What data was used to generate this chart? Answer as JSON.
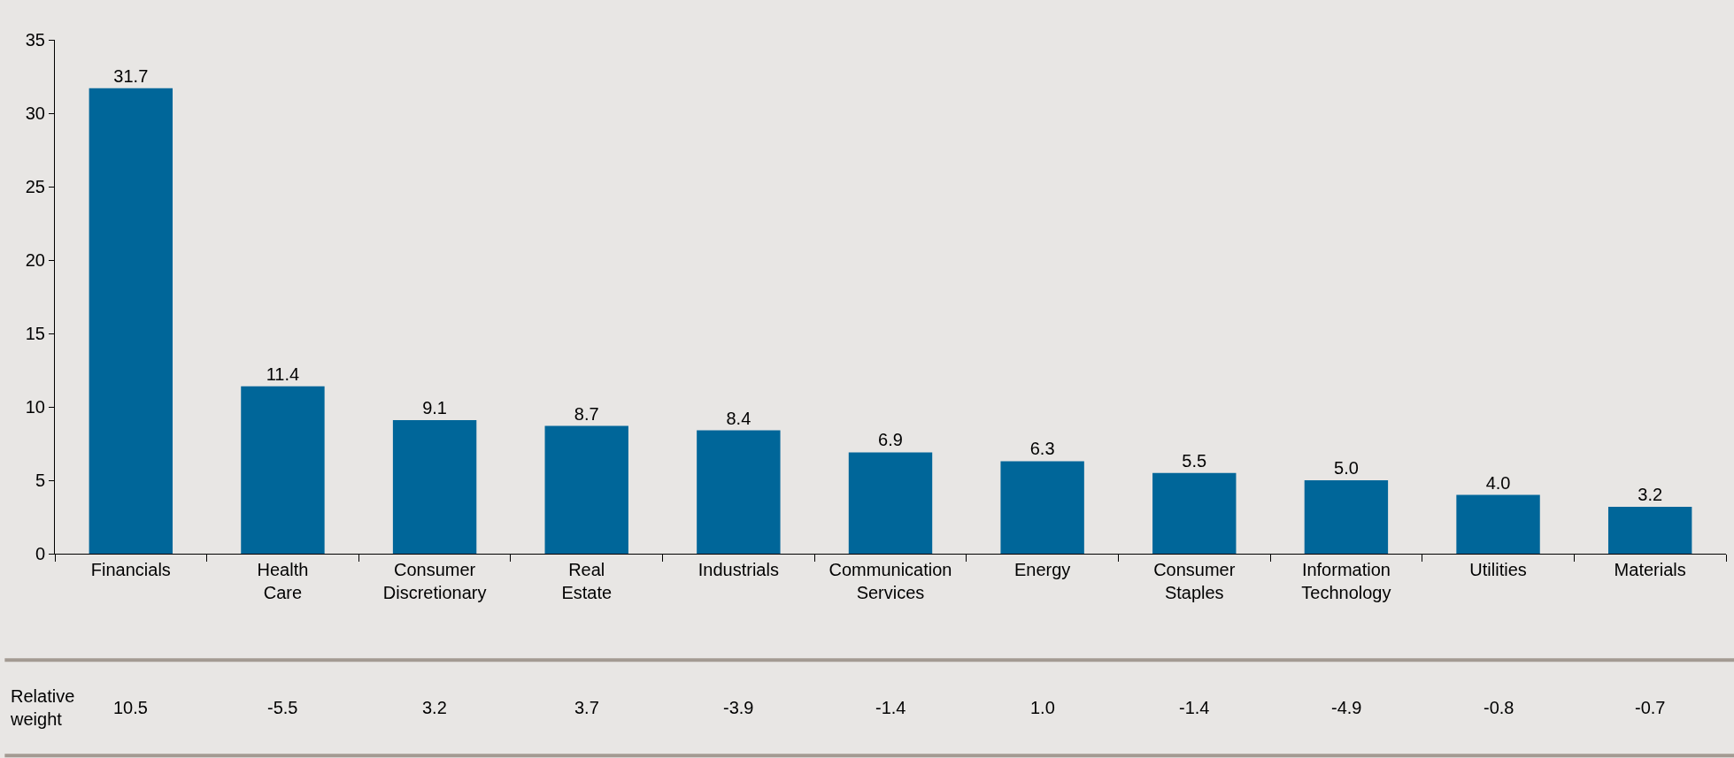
{
  "chart_data": {
    "type": "bar",
    "categories": [
      "Financials",
      "Health Care",
      "Consumer Discretionary",
      "Real Estate",
      "Industrials",
      "Communication Services",
      "Energy",
      "Consumer Staples",
      "Information Technology",
      "Utilities",
      "Materials"
    ],
    "values": [
      31.7,
      11.4,
      9.1,
      8.7,
      8.4,
      6.9,
      6.3,
      5.5,
      5.0,
      4.0,
      3.2
    ],
    "color": "#006699",
    "ylim": [
      0,
      35
    ],
    "yticks": [
      0,
      5,
      10,
      15,
      20,
      25,
      30,
      35
    ],
    "value_labels": [
      "31.7",
      "11.4",
      "9.1",
      "8.7",
      "8.4",
      "6.9",
      "6.3",
      "5.5",
      "5.0",
      "4.0",
      "3.2"
    ],
    "grid": false,
    "legend": false,
    "annotations": [
      "Relative weight",
      "10.5",
      "-5.5",
      "3.2",
      "3.7",
      "-3.9",
      "-1.4",
      "1.0",
      "-1.4",
      "-4.9",
      "-0.8",
      "-0.7"
    ]
  }
}
